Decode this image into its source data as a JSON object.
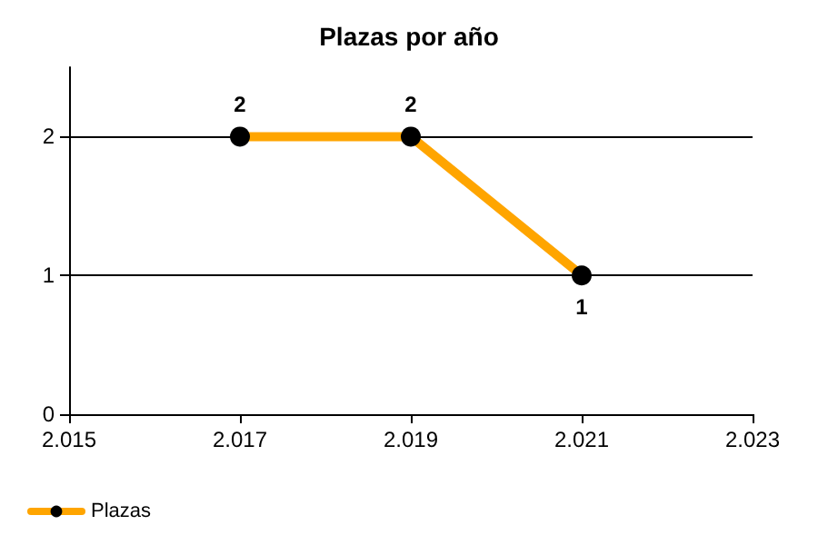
{
  "chart_data": {
    "type": "line",
    "title": "Plazas por año",
    "x": [
      2017,
      2019,
      2021
    ],
    "series": [
      {
        "name": "Plazas",
        "color": "#ffa500",
        "values": [
          2,
          2,
          1
        ]
      }
    ],
    "xlim": [
      2015,
      2023
    ],
    "xticks": [
      {
        "value": 2015,
        "label": "2.015"
      },
      {
        "value": 2017,
        "label": "2.017"
      },
      {
        "value": 2019,
        "label": "2.019"
      },
      {
        "value": 2021,
        "label": "2.021"
      },
      {
        "value": 2023,
        "label": "2.023"
      }
    ],
    "ylim": [
      0,
      2.5
    ],
    "yticks": [
      0,
      1,
      2
    ],
    "grid": "y",
    "legend": "bottom left",
    "marker": "circle",
    "line_style": "solid",
    "data_labels": true
  }
}
